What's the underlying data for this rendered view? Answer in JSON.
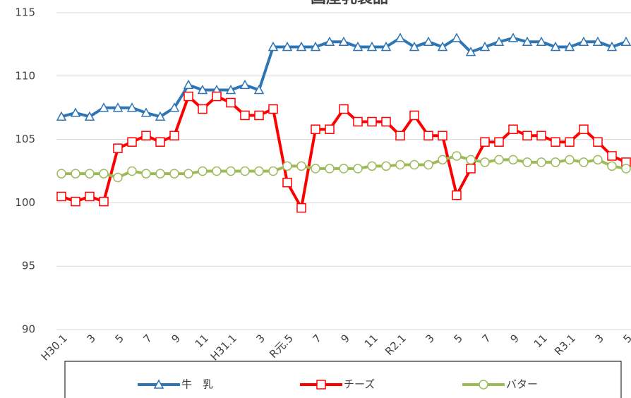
{
  "chart_data": {
    "type": "line",
    "title": "国産乳製品",
    "categories": [
      "H30.1",
      null,
      "3",
      null,
      "5",
      null,
      "7",
      null,
      "9",
      null,
      "11",
      null,
      "H31.1",
      null,
      "3",
      null,
      "R元.5",
      null,
      "7",
      null,
      "9",
      null,
      "11",
      null,
      "R2.1",
      null,
      "3",
      null,
      "5",
      null,
      "7",
      null,
      "9",
      null,
      "11",
      null,
      "R3.1",
      null,
      "3",
      null,
      "5"
    ],
    "series": [
      {
        "name": "牛　乳",
        "color": "#2e75b6",
        "marker": "triangle",
        "values": [
          106.8,
          107.1,
          106.8,
          107.5,
          107.5,
          107.5,
          107.1,
          106.8,
          107.5,
          109.3,
          108.9,
          108.9,
          108.9,
          109.3,
          108.9,
          112.3,
          112.3,
          112.3,
          112.3,
          112.7,
          112.7,
          112.3,
          112.3,
          112.3,
          113.0,
          112.3,
          112.7,
          112.3,
          113.0,
          111.9,
          112.3,
          112.7,
          113.0,
          112.7,
          112.7,
          112.3,
          112.3,
          112.7,
          112.7,
          112.3,
          112.7
        ]
      },
      {
        "name": "チーズ",
        "color": "#ff0000",
        "marker": "square",
        "values": [
          100.5,
          100.1,
          100.5,
          100.1,
          104.3,
          104.8,
          105.3,
          104.8,
          105.3,
          108.4,
          107.4,
          108.4,
          107.9,
          106.9,
          106.9,
          107.4,
          101.6,
          99.6,
          105.8,
          105.8,
          107.4,
          106.4,
          106.4,
          106.4,
          105.3,
          106.9,
          105.3,
          105.3,
          100.6,
          102.7,
          104.8,
          104.8,
          105.8,
          105.3,
          105.3,
          104.8,
          104.8,
          105.8,
          104.8,
          103.7,
          103.2
        ]
      },
      {
        "name": "バター",
        "color": "#9bbb59",
        "marker": "circle",
        "values": [
          102.3,
          102.3,
          102.3,
          102.3,
          102.0,
          102.5,
          102.3,
          102.3,
          102.3,
          102.3,
          102.5,
          102.5,
          102.5,
          102.5,
          102.5,
          102.5,
          102.9,
          102.9,
          102.7,
          102.7,
          102.7,
          102.7,
          102.9,
          102.9,
          103.0,
          103.0,
          103.0,
          103.4,
          103.7,
          103.4,
          103.2,
          103.4,
          103.4,
          103.2,
          103.2,
          103.2,
          103.4,
          103.2,
          103.4,
          102.9,
          102.7
        ]
      }
    ],
    "ylim": [
      90,
      115
    ],
    "yticks": [
      90,
      95,
      100,
      105,
      110,
      115
    ],
    "grid": true,
    "legend": "bottom"
  }
}
